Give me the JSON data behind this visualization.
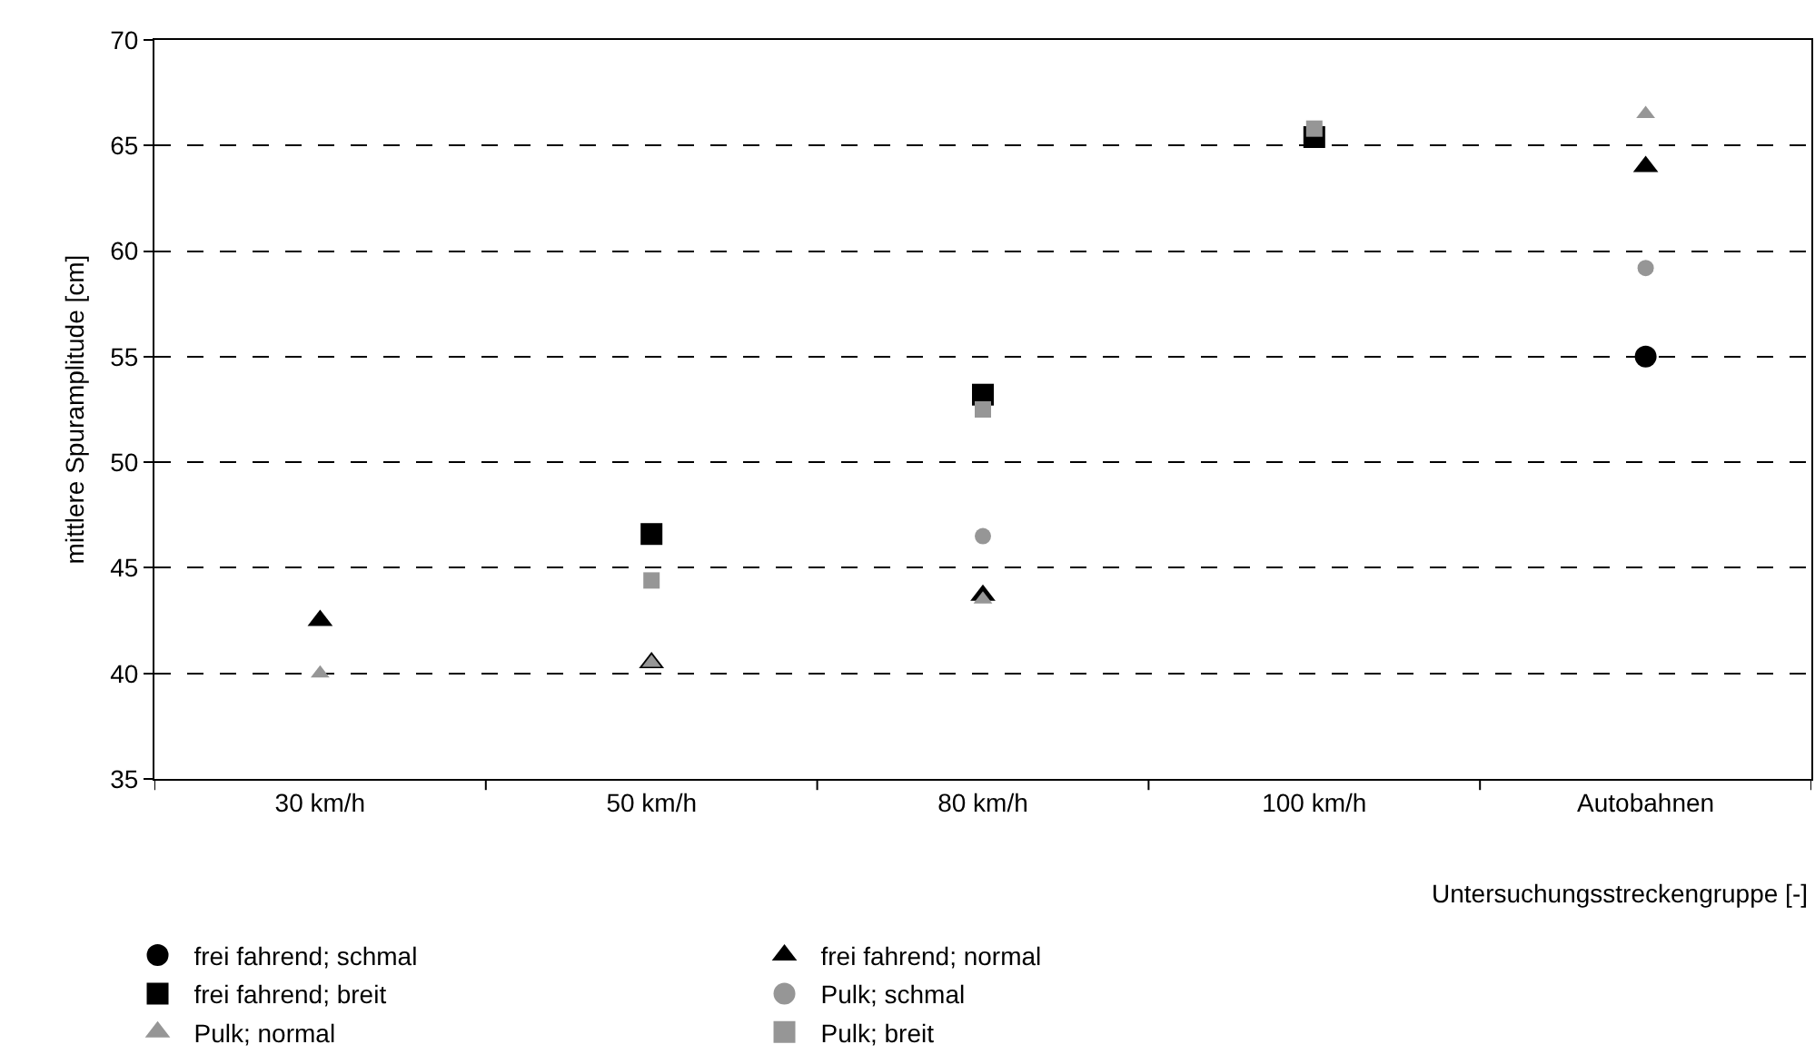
{
  "chart_data": {
    "type": "scatter",
    "xlabel": "Untersuchungsstreckengruppe [-]",
    "ylabel": "mittlere Spuramplitude [cm]",
    "categories": [
      "30 km/h",
      "50 km/h",
      "80 km/h",
      "100 km/h",
      "Autobahnen"
    ],
    "series": [
      {
        "name": "frei fahrend; schmal",
        "color": "#000000",
        "marker": "circle",
        "values": [
          null,
          null,
          null,
          null,
          55
        ]
      },
      {
        "name": "frei fahrend; normal",
        "color": "#000000",
        "marker": "triangle",
        "values": [
          42.5,
          40.5,
          43.7,
          null,
          64
        ]
      },
      {
        "name": "frei fahrend; breit",
        "color": "#000000",
        "marker": "square",
        "values": [
          null,
          46.6,
          53.2,
          65.4,
          null
        ]
      },
      {
        "name": "Pulk; schmal",
        "color": "#969696",
        "marker": "circle",
        "values": [
          null,
          null,
          46.5,
          null,
          59.2
        ]
      },
      {
        "name": "Pulk; normal",
        "color": "#969696",
        "marker": "triangle",
        "values": [
          40,
          40.5,
          43.5,
          null,
          66.5
        ]
      },
      {
        "name": "Pulk; breit",
        "color": "#969696",
        "marker": "square",
        "values": [
          null,
          44.4,
          52.5,
          65.8,
          null
        ]
      }
    ],
    "ylim": [
      35,
      70
    ],
    "yticks": [
      35,
      40,
      45,
      50,
      55,
      60,
      65,
      70
    ],
    "grid": "y",
    "legend": "bottom"
  }
}
